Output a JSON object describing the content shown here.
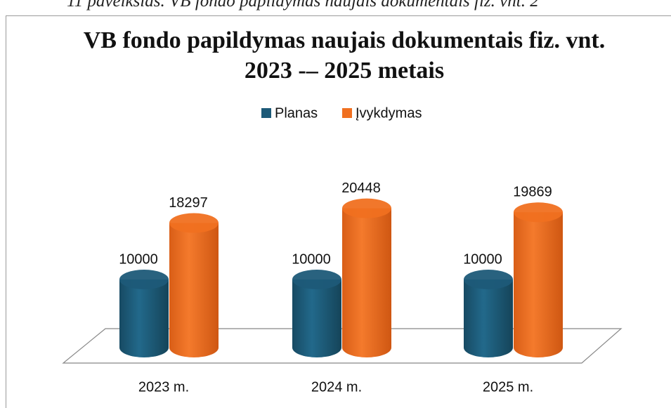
{
  "caption": "11 paveikslas. VB fondo papildymas naujais dokumentais fiz. vnt. 2",
  "chart_data": {
    "type": "bar3d",
    "title": "VB fondo papildymas naujais dokumentais fiz. vnt. 2023 -– 2025 metais",
    "categories": [
      "2023 m.",
      "2024 m.",
      "2025 m."
    ],
    "series": [
      {
        "name": "Planas",
        "color": "#1d5a78",
        "values": [
          10000,
          10000,
          10000
        ]
      },
      {
        "name": "Įvykdymas",
        "color": "#f07020",
        "values": [
          18297,
          20448,
          19869
        ]
      }
    ],
    "legend": "top"
  }
}
